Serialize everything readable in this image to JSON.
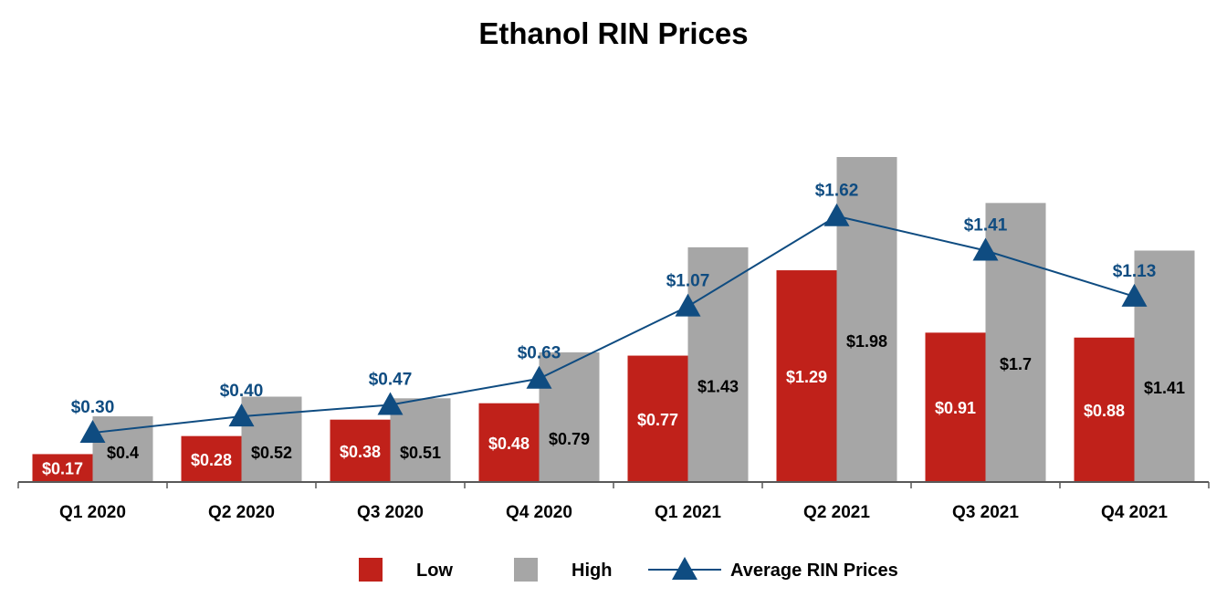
{
  "chart_data": {
    "type": "bar",
    "title": "Ethanol RIN Prices",
    "categories": [
      "Q1 2020",
      "Q2 2020",
      "Q3 2020",
      "Q4 2020",
      "Q1 2021",
      "Q2 2021",
      "Q3 2021",
      "Q4 2021"
    ],
    "series": [
      {
        "name": "Low",
        "type": "bar",
        "color": "#c0211a",
        "values": [
          0.17,
          0.28,
          0.38,
          0.48,
          0.77,
          1.29,
          0.91,
          0.88
        ],
        "labels": [
          "$0.17",
          "$0.28",
          "$0.38",
          "$0.48",
          "$0.77",
          "$1.29",
          "$0.91",
          "$0.88"
        ]
      },
      {
        "name": "High",
        "type": "bar",
        "color": "#a6a6a6",
        "values": [
          0.4,
          0.52,
          0.51,
          0.79,
          1.43,
          1.98,
          1.7,
          1.41
        ],
        "labels": [
          "$0.4",
          "$0.52",
          "$0.51",
          "$0.79",
          "$1.43",
          "$1.98",
          "$1.7",
          "$1.41"
        ]
      },
      {
        "name": "Average RIN Prices",
        "type": "line",
        "marker": "triangle",
        "color": "#0f4c81",
        "values": [
          0.3,
          0.4,
          0.47,
          0.63,
          1.07,
          1.62,
          1.41,
          1.13
        ],
        "labels": [
          "$0.30",
          "$0.40",
          "$0.47",
          "$0.63",
          "$1.07",
          "$1.62",
          "$1.41",
          "$1.13"
        ]
      }
    ],
    "xlabel": "",
    "ylabel": "",
    "ylim": [
      0,
      2.0
    ],
    "grid": false,
    "legend": "bottom-center"
  }
}
